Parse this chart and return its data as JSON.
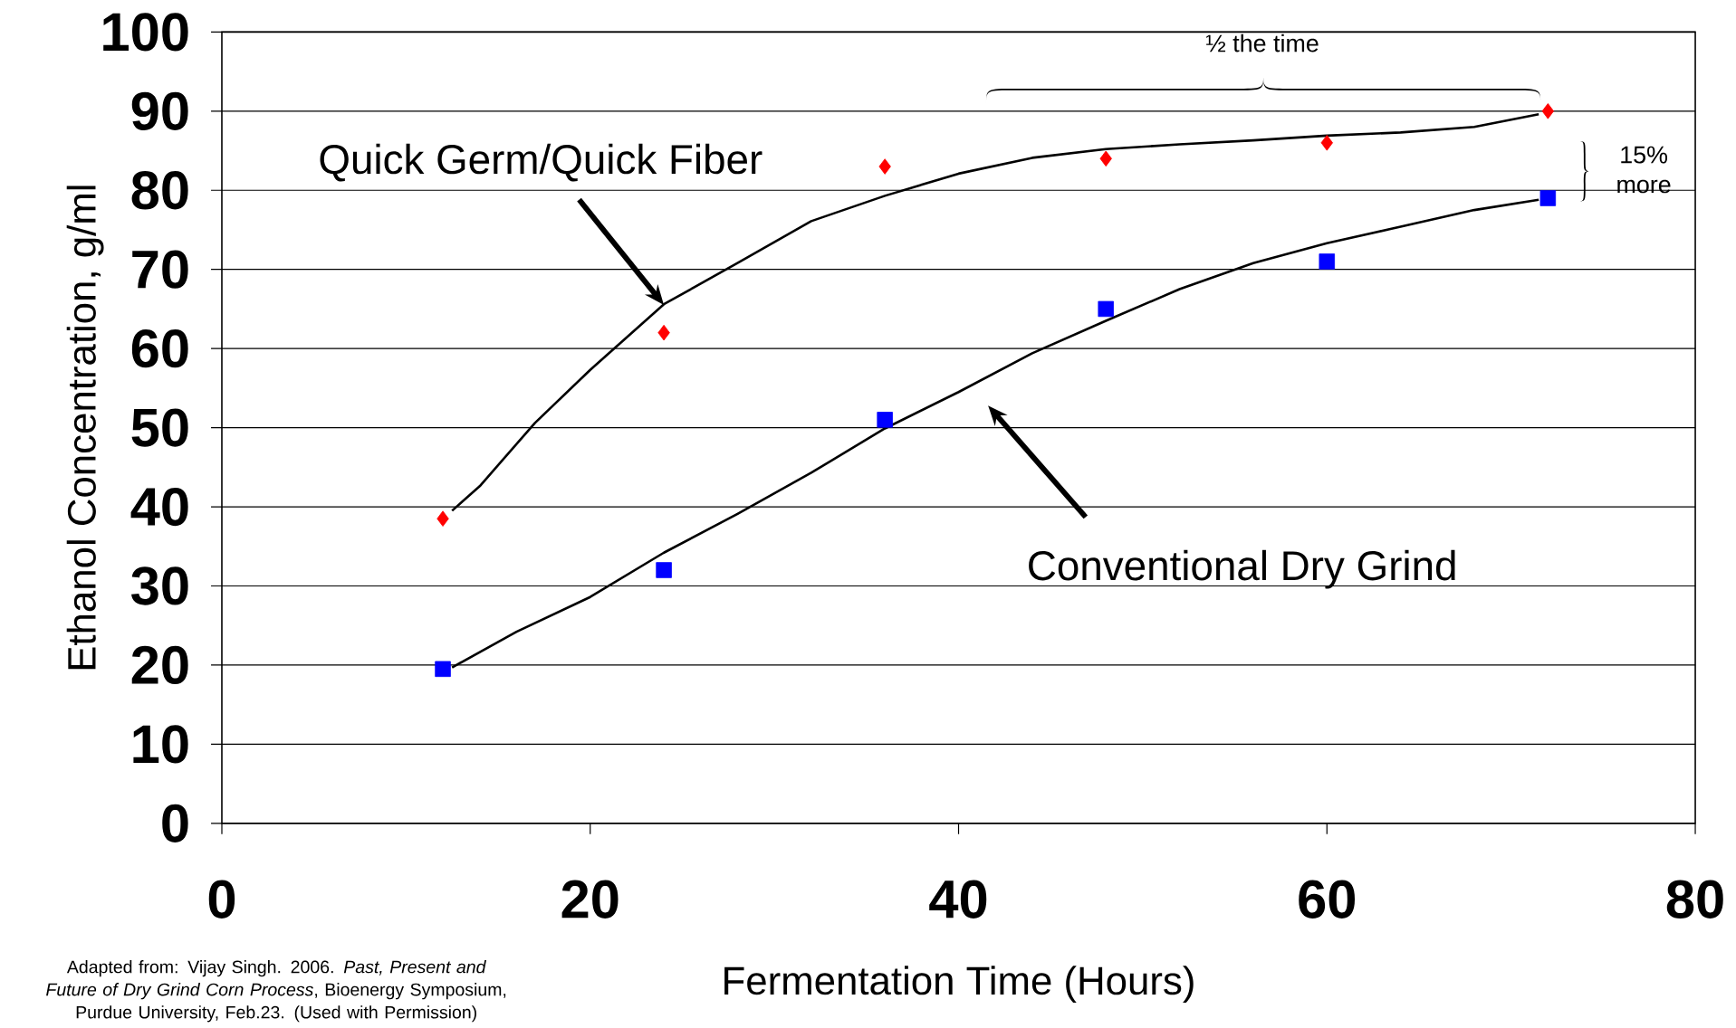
{
  "chart_data": {
    "type": "scatter",
    "xlabel": "Fermentation Time (Hours)",
    "ylabel": "Ethanol Concentration,  g/ml",
    "xlim": [
      0,
      80
    ],
    "ylim": [
      0,
      100
    ],
    "xticks": [
      0,
      20,
      40,
      60,
      80
    ],
    "yticks": [
      0,
      10,
      20,
      30,
      40,
      50,
      60,
      70,
      80,
      90,
      100
    ],
    "grid": "y",
    "series": [
      {
        "marker": "diamond",
        "color": "#ff0000",
        "x": [
          12,
          24,
          36,
          48,
          60,
          72
        ],
        "values": [
          38.5,
          62,
          83,
          84,
          86,
          90
        ]
      },
      {
        "marker": "square",
        "color": "#0000ff",
        "x": [
          12,
          24,
          36,
          48,
          60,
          72
        ],
        "values": [
          19.5,
          32,
          51,
          65,
          71,
          79
        ]
      },
      {
        "type": "line",
        "marker": "none",
        "color": "#000000",
        "x": [
          12.5,
          14,
          17,
          20,
          24,
          28,
          32,
          36,
          40,
          44,
          48,
          52,
          56,
          60,
          64,
          68,
          71.5
        ],
        "values": [
          39.5,
          42.6,
          50.6,
          57.3,
          65.6,
          70.8,
          76.1,
          79.3,
          82.1,
          84.1,
          85.2,
          85.8,
          86.3,
          86.9,
          87.3,
          88,
          89.6
        ]
      },
      {
        "type": "line",
        "marker": "none",
        "color": "#000000",
        "x": [
          12.5,
          16,
          20,
          24,
          28,
          32,
          36,
          40,
          44,
          48,
          52,
          56,
          60,
          64,
          68,
          71.5
        ],
        "values": [
          19.7,
          24.2,
          28.6,
          34.2,
          39.1,
          44.3,
          49.9,
          54.5,
          59.4,
          63.5,
          67.5,
          70.8,
          73.3,
          75.4,
          77.5,
          78.8
        ]
      }
    ],
    "annotations": [
      "Quick Germ/Quick Fiber",
      "Conventional Dry Grind",
      "½ the time",
      "15% more",
      "Adapted from:  Vijay Singh. 2006. *Past, Present and Future of Dry Grind Corn Process*, Bioenergy Symposium, Purdue University, Feb.23. (Used with Permission)"
    ]
  }
}
